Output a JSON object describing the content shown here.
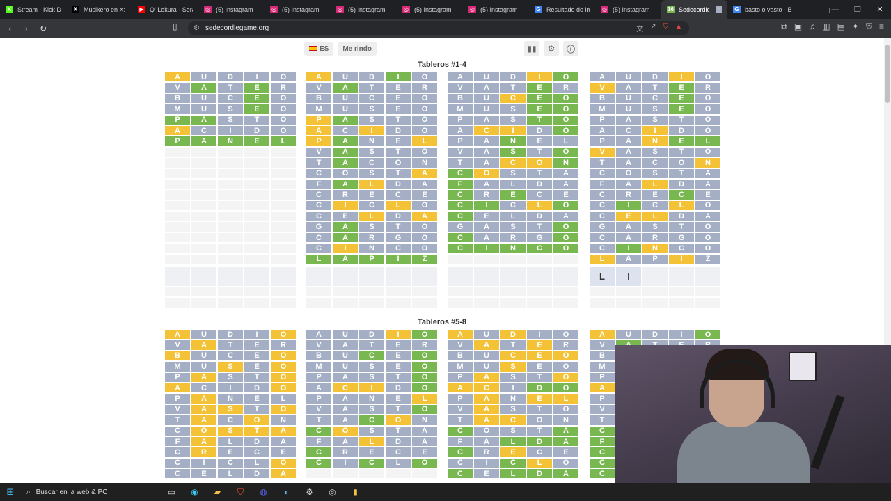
{
  "browser": {
    "tabs": [
      {
        "title": "Stream - Kick Da",
        "fav": "K",
        "color": "#53fc18"
      },
      {
        "title": "Musikero en X: \"r",
        "fav": "X",
        "color": "#000000"
      },
      {
        "title": "Q' Lokura - Será",
        "fav": "▶",
        "color": "#ff0000"
      },
      {
        "title": "(5) Instagram",
        "fav": "◎",
        "color": "#d62976"
      },
      {
        "title": "(5) Instagram",
        "fav": "◎",
        "color": "#d62976"
      },
      {
        "title": "(5) Instagram",
        "fav": "◎",
        "color": "#d62976"
      },
      {
        "title": "(5) Instagram",
        "fav": "◎",
        "color": "#d62976"
      },
      {
        "title": "(5) Instagram",
        "fav": "◎",
        "color": "#d62976"
      },
      {
        "title": "Resultado de imá",
        "fav": "G",
        "color": "#4285f4"
      },
      {
        "title": "(5) Instagram",
        "fav": "◎",
        "color": "#d62976"
      },
      {
        "title": "Sedecordle G",
        "fav": "16",
        "color": "#79b851",
        "active": true
      },
      {
        "title": "basto o vasto - B",
        "fav": "G",
        "color": "#4285f4"
      }
    ],
    "url": "sedecordlegame.org"
  },
  "game": {
    "lang_label": "ES",
    "giveup_label": "Me rindo",
    "section1_title": "Tableros #1-4",
    "section2_title": "Tableros #5-8",
    "current_guess": [
      "L",
      "I",
      "",
      "",
      ""
    ]
  },
  "boards_top": [
    {
      "rows": [
        [
          "AUDIO",
          "yxxxx"
        ],
        [
          "VATER",
          "xgxgx"
        ],
        [
          "BUCEO",
          "xxxgx"
        ],
        [
          "MUSEO",
          "xxxgx"
        ],
        [
          "PASTO",
          "ggxxx"
        ],
        [
          "ACIDO",
          "yxxxx"
        ],
        [
          "PANEL",
          "ggggg"
        ]
      ]
    },
    {
      "rows": [
        [
          "AUDIO",
          "yxxgx"
        ],
        [
          "VATER",
          "xgxxx"
        ],
        [
          "BUCEO",
          "xxxxx"
        ],
        [
          "MUSEO",
          "xxxxx"
        ],
        [
          "PASTO",
          "ygxxx"
        ],
        [
          "ACIDO",
          "yxyxx"
        ],
        [
          "PANEL",
          "ygxxy"
        ],
        [
          "VASTO",
          "xgxxx"
        ],
        [
          "TACON",
          "xgxxx"
        ],
        [
          "COSTA",
          "xxxxy"
        ],
        [
          "FALDA",
          "xgyxx"
        ],
        [
          "CRECE",
          "xxxxx"
        ],
        [
          "CICLO",
          "xyxyx"
        ],
        [
          "CELDA",
          "xxyxy"
        ],
        [
          "GASTO",
          "xgxxx"
        ],
        [
          "CARGO",
          "xgxxx"
        ],
        [
          "CINCO",
          "xyxxx"
        ],
        [
          "LAPIZ",
          "ggggg"
        ]
      ]
    },
    {
      "rows": [
        [
          "AUDIO",
          "xxxyg"
        ],
        [
          "VATER",
          "xxxgx"
        ],
        [
          "BUCEO",
          "xxygg"
        ],
        [
          "MUSEO",
          "xxxgg"
        ],
        [
          "PASTO",
          "xxxgg"
        ],
        [
          "ACIDO",
          "xyyxg"
        ],
        [
          "PANEL",
          "xxgxx"
        ],
        [
          "VASTO",
          "xxgxg"
        ],
        [
          "TACON",
          "xxyyg"
        ],
        [
          "COSTA",
          "gyxxx"
        ],
        [
          "FALDA",
          "gxxxx"
        ],
        [
          "CRECE",
          "gxgxx"
        ],
        [
          "CICLO",
          "ggxyg"
        ],
        [
          "CELDA",
          "gxxxx"
        ],
        [
          "GASTO",
          "xxxxg"
        ],
        [
          "CARGO",
          "gxxxg"
        ],
        [
          "CINCO",
          "ggggg"
        ]
      ]
    },
    {
      "rows": [
        [
          "AUDIO",
          "xxxyx"
        ],
        [
          "VATER",
          "yxxgx"
        ],
        [
          "BUCEO",
          "xxxgx"
        ],
        [
          "MUSEO",
          "xxxgx"
        ],
        [
          "PASTO",
          "xxxxx"
        ],
        [
          "ACIDO",
          "xxyxx"
        ],
        [
          "PANEL",
          "xxygg"
        ],
        [
          "VASTO",
          "yxxxx"
        ],
        [
          "TACON",
          "xxxxy"
        ],
        [
          "COSTA",
          "xxxxx"
        ],
        [
          "FALDA",
          "xxyxx"
        ],
        [
          "CRECE",
          "xxxgx"
        ],
        [
          "CICLO",
          "xgxyx"
        ],
        [
          "CELDA",
          "xyyxx"
        ],
        [
          "GASTO",
          "xxxxx"
        ],
        [
          "CARGO",
          "xxxxx"
        ],
        [
          "CINCO",
          "xgyxx"
        ],
        [
          "LAPIZ",
          "yxxyx"
        ]
      ]
    }
  ],
  "boards_bottom": [
    {
      "rows": [
        [
          "AUDIO",
          "yxxxy"
        ],
        [
          "VATER",
          "xyxxx"
        ],
        [
          "BUCEO",
          "yxxxy"
        ],
        [
          "MUSEO",
          "xxyxy"
        ],
        [
          "PASTO",
          "xyxxy"
        ],
        [
          "ACIDO",
          "yxxxy"
        ],
        [
          "PANEL",
          "xyxxx"
        ],
        [
          "VASTO",
          "xyyxy"
        ],
        [
          "TACON",
          "xyxyx"
        ],
        [
          "COSTA",
          "xyyyy"
        ],
        [
          "FALDA",
          "xyxxx"
        ],
        [
          "CRECE",
          "xyxxx"
        ],
        [
          "CICLO",
          "xxxxy"
        ],
        [
          "CELDA",
          "xxxxy"
        ]
      ]
    },
    {
      "rows": [
        [
          "AUDIO",
          "xxxyg"
        ],
        [
          "VATER",
          "xxxxx"
        ],
        [
          "BUCEO",
          "xxgxg"
        ],
        [
          "MUSEO",
          "xxxxg"
        ],
        [
          "PASTO",
          "xxxxg"
        ],
        [
          "ACIDO",
          "xyyxg"
        ],
        [
          "PANEL",
          "xxxxy"
        ],
        [
          "VASTO",
          "xxxxg"
        ],
        [
          "TACON",
          "xxgyx"
        ],
        [
          "COSTA",
          "gyxxx"
        ],
        [
          "FALDA",
          "xxyxx"
        ],
        [
          "CRECE",
          "gxxxx"
        ],
        [
          "CICLO",
          "gxgxg"
        ]
      ]
    },
    {
      "rows": [
        [
          "AUDIO",
          "yxyxx"
        ],
        [
          "VATER",
          "xyxyx"
        ],
        [
          "BUCEO",
          "xxyyy"
        ],
        [
          "MUSEO",
          "xxyxx"
        ],
        [
          "PASTO",
          "xyxxy"
        ],
        [
          "ACIDO",
          "yyxgg"
        ],
        [
          "PANEL",
          "xyxyy"
        ],
        [
          "VASTO",
          "xyxxx"
        ],
        [
          "TACON",
          "xyyxx"
        ],
        [
          "COSTA",
          "gxxxg"
        ],
        [
          "FALDA",
          "xxggg"
        ],
        [
          "CRECE",
          "gxyxx"
        ],
        [
          "CICLO",
          "xxgyx"
        ],
        [
          "CELDA",
          "gxggg"
        ]
      ]
    },
    {
      "rows": [
        [
          "AUDIO",
          "yxxxg"
        ],
        [
          "VATER",
          "xgxxx"
        ],
        [
          "BUCEO",
          "xxxxx"
        ],
        [
          "MUSEO",
          "xxxxx"
        ],
        [
          "PASTO",
          "xxxxx"
        ],
        [
          "ACIDO",
          "yxxxx"
        ],
        [
          "PANEL",
          "xxxxx"
        ],
        [
          "VASTO",
          "xxxxx"
        ],
        [
          "TACON",
          "xxxxx"
        ],
        [
          "COSTA",
          "gxxxx"
        ],
        [
          "FALDA",
          "gxxxx"
        ],
        [
          "CRECE",
          "gxxxx"
        ],
        [
          "CICLO",
          "gxxxx"
        ],
        [
          "CELDA",
          "gxxxx"
        ]
      ]
    }
  ],
  "taskbar": {
    "search_placeholder": "Buscar en la web & PC"
  }
}
